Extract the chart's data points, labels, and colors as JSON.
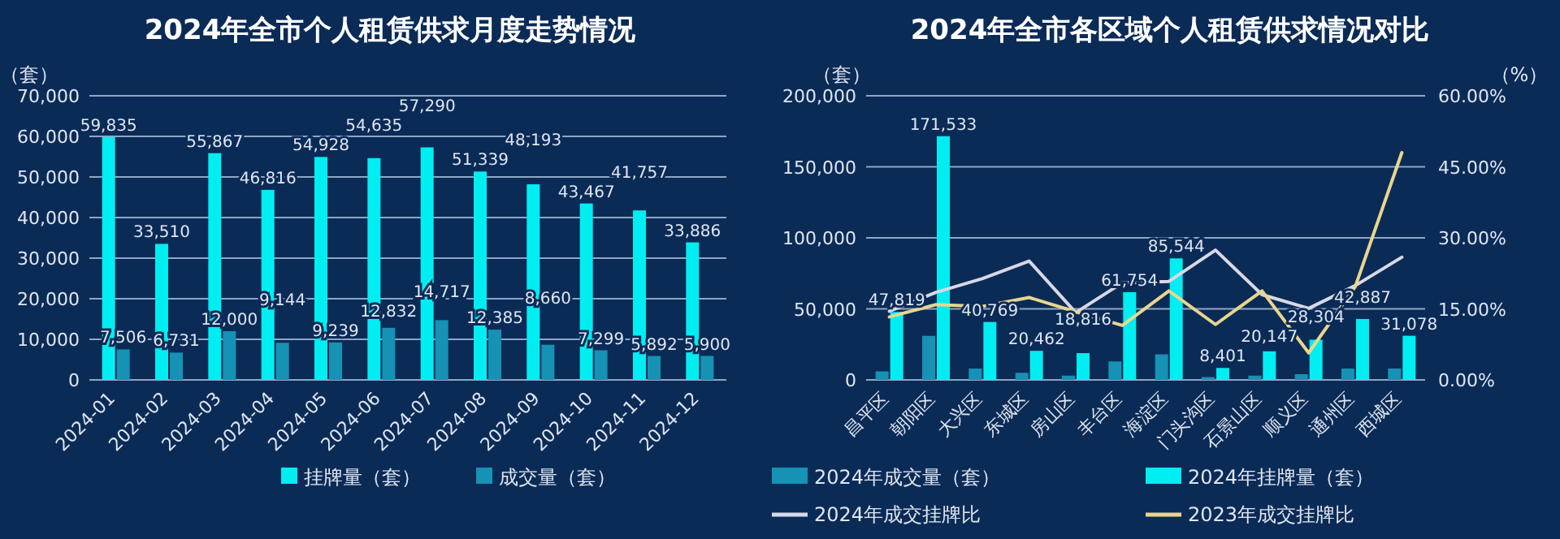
{
  "chart_data": [
    {
      "type": "bar",
      "title": "2024年全市个人租赁供求月度走势情况",
      "ylabel": "（套）",
      "categories": [
        "2024-01",
        "2024-02",
        "2024-03",
        "2024-04",
        "2024-05",
        "2024-06",
        "2024-07",
        "2024-08",
        "2024-09",
        "2024-10",
        "2024-11",
        "2024-12"
      ],
      "series": [
        {
          "name": "挂牌量（套）",
          "color": "#00eef2",
          "values": [
            59835,
            33510,
            55867,
            46816,
            54928,
            54635,
            57290,
            51339,
            48193,
            43467,
            41757,
            33886
          ],
          "value_labels": [
            "59,835",
            "33,510",
            "55,867",
            "46,816",
            "54,928",
            "54,635",
            "57,290",
            "51,339",
            "48,193",
            "43,467",
            "41,757",
            "33,886"
          ]
        },
        {
          "name": "成交量（套）",
          "color": "#1592b4",
          "values": [
            7506,
            6731,
            12000,
            9144,
            9239,
            12832,
            14717,
            12385,
            8660,
            7299,
            5892,
            5900
          ],
          "value_labels": [
            "7,506",
            "6,731",
            "12,000",
            "9,144",
            "9,239",
            "12,832",
            "14,717",
            "12,385",
            "8,660",
            "7,299",
            "5,892",
            "5,900"
          ]
        }
      ],
      "ylim": [
        0,
        70000
      ],
      "yticks": [
        {
          "value": 0,
          "label": "0"
        },
        {
          "value": 10000,
          "label": "10,000"
        },
        {
          "value": 20000,
          "label": "20,000"
        },
        {
          "value": 30000,
          "label": "30,000"
        },
        {
          "value": 40000,
          "label": "40,000"
        },
        {
          "value": 50000,
          "label": "50,000"
        },
        {
          "value": 60000,
          "label": "60,000"
        },
        {
          "value": 70000,
          "label": "70,000"
        }
      ],
      "grid": "y",
      "legend": "bottom"
    },
    {
      "type": "bar",
      "title": "2024年全市各区域个人租赁供求情况对比",
      "ylabel": "（套）",
      "y2label": "（%）",
      "categories": [
        "昌平区",
        "朝阳区",
        "大兴区",
        "东城区",
        "房山区",
        "丰台区",
        "海淀区",
        "门头沟区",
        "石景山区",
        "顺义区",
        "通州区",
        "西城区"
      ],
      "series": [
        {
          "name": "2024年成交量（套）",
          "color": "#1592b4",
          "values": [
            6000,
            31000,
            8000,
            5000,
            3000,
            13000,
            18000,
            2000,
            3000,
            4000,
            8000,
            8000
          ]
        },
        {
          "name": "2024年挂牌量（套）",
          "color": "#00eef2",
          "values": [
            47819,
            171533,
            40769,
            20462,
            18816,
            61754,
            85544,
            8401,
            20147,
            28304,
            42887,
            31078
          ],
          "value_labels": [
            "47,819",
            "171,533",
            "40,769",
            "20,462",
            "18,816",
            "61,754",
            "85,544",
            "8,401",
            "20,147",
            "28,304",
            "42,887",
            "31,078"
          ]
        },
        {
          "name": "2024年成交挂牌比",
          "type": "line",
          "axis": "y2",
          "color": "#d8d8e6",
          "values": [
            14.5,
            18.5,
            21.4,
            25.1,
            14.2,
            20.5,
            20.8,
            27.4,
            18.0,
            15.1,
            19.9,
            25.9
          ]
        },
        {
          "name": "2023年成交挂牌比",
          "type": "line",
          "axis": "y2",
          "color": "#e8d68e",
          "values": [
            13.3,
            15.9,
            15.5,
            17.4,
            14.4,
            11.5,
            18.8,
            11.7,
            18.8,
            5.7,
            19.7,
            48.0
          ]
        }
      ],
      "ylim": [
        0,
        200000
      ],
      "yticks": [
        {
          "value": 0,
          "label": "0"
        },
        {
          "value": 50000,
          "label": "50,000"
        },
        {
          "value": 100000,
          "label": "100,000"
        },
        {
          "value": 150000,
          "label": "150,000"
        },
        {
          "value": 200000,
          "label": "200,000"
        }
      ],
      "y2lim": [
        0,
        60
      ],
      "y2ticks": [
        {
          "value": 0,
          "label": "0.00%"
        },
        {
          "value": 15,
          "label": "15.00%"
        },
        {
          "value": 30,
          "label": "30.00%"
        },
        {
          "value": 45,
          "label": "45.00%"
        },
        {
          "value": 60,
          "label": "60.00%"
        }
      ],
      "grid": "y",
      "legend": "bottom"
    }
  ]
}
